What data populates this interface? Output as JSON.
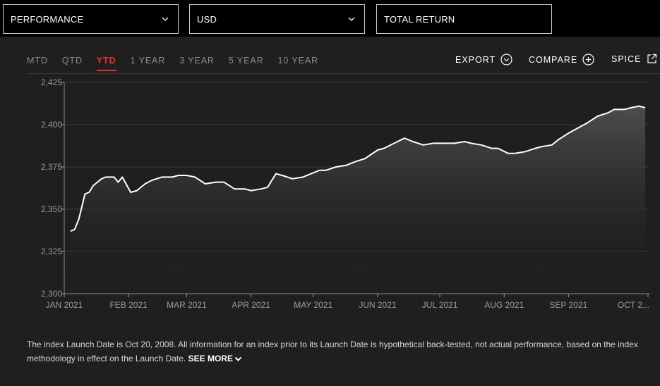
{
  "filters": {
    "performance": "PERFORMANCE",
    "currency": "USD",
    "return_type": "TOTAL RETURN"
  },
  "tabs": [
    {
      "label": "MTD",
      "active": false
    },
    {
      "label": "QTD",
      "active": false
    },
    {
      "label": "YTD",
      "active": true
    },
    {
      "label": "1 YEAR",
      "active": false
    },
    {
      "label": "3 YEAR",
      "active": false
    },
    {
      "label": "5 YEAR",
      "active": false
    },
    {
      "label": "10 YEAR",
      "active": false
    }
  ],
  "actions": {
    "export": "EXPORT",
    "compare": "COMPARE",
    "spice": "SPICE"
  },
  "colors": {
    "accent": "#e8322b",
    "line": "#ffffff",
    "background": "#1f1f1f"
  },
  "chart_data": {
    "type": "area",
    "ylim": [
      2300,
      2425
    ],
    "y_ticks": [
      "2,300",
      "2,325",
      "2,350",
      "2,375",
      "2,400",
      "2,425"
    ],
    "x_ticks": [
      "JAN 2021",
      "FEB 2021",
      "MAR 2021",
      "APR 2021",
      "MAY 2021",
      "JUN 2021",
      "JUL 2021",
      "AUG 2021",
      "SEP 2021",
      "OCT 2..."
    ],
    "x": [
      "2021-01-04",
      "2021-01-06",
      "2021-01-08",
      "2021-01-11",
      "2021-01-13",
      "2021-01-15",
      "2021-01-19",
      "2021-01-21",
      "2021-01-25",
      "2021-01-27",
      "2021-01-29",
      "2021-02-02",
      "2021-02-05",
      "2021-02-09",
      "2021-02-12",
      "2021-02-17",
      "2021-02-22",
      "2021-02-25",
      "2021-03-01",
      "2021-03-05",
      "2021-03-10",
      "2021-03-15",
      "2021-03-19",
      "2021-03-24",
      "2021-03-29",
      "2021-04-01",
      "2021-04-06",
      "2021-04-09",
      "2021-04-13",
      "2021-04-16",
      "2021-04-21",
      "2021-04-26",
      "2021-04-30",
      "2021-05-04",
      "2021-05-07",
      "2021-05-12",
      "2021-05-17",
      "2021-05-21",
      "2021-05-26",
      "2021-06-01",
      "2021-06-04",
      "2021-06-09",
      "2021-06-14",
      "2021-06-18",
      "2021-06-23",
      "2021-06-28",
      "2021-07-02",
      "2021-07-08",
      "2021-07-13",
      "2021-07-16",
      "2021-07-21",
      "2021-07-26",
      "2021-07-29",
      "2021-08-03",
      "2021-08-06",
      "2021-08-11",
      "2021-08-16",
      "2021-08-19",
      "2021-08-24",
      "2021-08-27",
      "2021-09-01",
      "2021-09-07",
      "2021-09-10",
      "2021-09-15",
      "2021-09-20",
      "2021-09-23",
      "2021-09-28",
      "2021-10-01",
      "2021-10-05",
      "2021-10-08"
    ],
    "series": [
      {
        "values": [
          2337,
          2338,
          2344,
          2359,
          2360,
          2364,
          2368,
          2369,
          2369,
          2366,
          2369,
          2360,
          2361,
          2365,
          2367,
          2369,
          2369,
          2370,
          2370,
          2369,
          2365,
          2366,
          2366,
          2362,
          2362,
          2361,
          2362,
          2363,
          2371,
          2370,
          2368,
          2369,
          2371,
          2373,
          2373,
          2375,
          2376,
          2378,
          2380,
          2385,
          2386,
          2389,
          2392,
          2390,
          2388,
          2389,
          2389,
          2389,
          2390,
          2389,
          2388,
          2386,
          2386,
          2383,
          2383,
          2384,
          2386,
          2387,
          2388,
          2391,
          2395,
          2399,
          2401,
          2405,
          2407,
          2409,
          2409,
          2410,
          2411,
          2410
        ]
      }
    ]
  },
  "note": {
    "text": "The index Launch Date is Oct 20, 2008. All information for an index prior to its Launch Date is hypothetical back-tested, not actual performance, based on the index methodology in effect on the Launch Date.",
    "see_more": "SEE MORE"
  }
}
